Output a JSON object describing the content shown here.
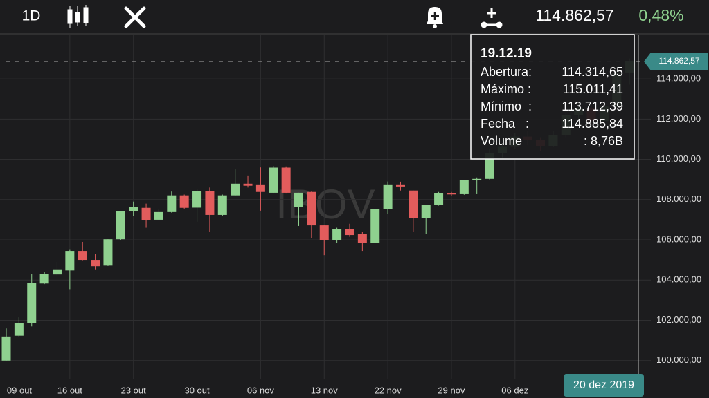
{
  "header": {
    "interval": "1D",
    "price": "114.862,57",
    "change": "0,48%"
  },
  "tooltip": {
    "date": "19.12.19",
    "rows": [
      [
        "Abertura:",
        "114.314,65"
      ],
      [
        "Máximo :",
        "115.011,41"
      ],
      [
        "Mínimo  :",
        "113.712,39"
      ],
      [
        "Fecha   :",
        "114.885,84"
      ],
      [
        "Volume",
        ": 8,76B"
      ]
    ]
  },
  "cursor_date": "20 dez 2019",
  "chart_data": {
    "type": "candlestick",
    "watermark": "IBOV",
    "categories": [
      null,
      null,
      null,
      null,
      null,
      "16 out",
      null,
      null,
      null,
      null,
      "23 out",
      null,
      null,
      null,
      null,
      "30 out",
      null,
      null,
      null,
      null,
      "06 nov",
      null,
      null,
      null,
      null,
      "13 nov",
      null,
      null,
      null,
      null,
      "22 nov",
      null,
      null,
      null,
      null,
      "29 nov",
      null,
      null,
      null,
      null,
      "06 dez",
      null,
      null,
      null,
      null,
      null,
      null,
      null,
      null,
      null
    ],
    "first_label": "09 out",
    "open": [
      100000,
      101240,
      101860,
      103830,
      104280,
      104480,
      105450,
      104970,
      104720,
      106030,
      107410,
      107590,
      107000,
      107380,
      108210,
      107600,
      108410,
      107240,
      108210,
      108790,
      108720,
      108340,
      109590,
      107620,
      108380,
      106720,
      106000,
      106550,
      106310,
      105860,
      107520,
      108720,
      108450,
      107070,
      107720,
      108310,
      108270,
      108960,
      109030,
      110310,
      110620,
      111130,
      110980,
      110670,
      111190,
      112200,
      112560,
      111900,
      112620,
      114314.65
    ],
    "high": [
      101600,
      102150,
      104300,
      104400,
      104900,
      105500,
      105900,
      105300,
      106030,
      107410,
      107900,
      107800,
      107500,
      108400,
      108250,
      108500,
      108600,
      108250,
      109500,
      109200,
      109600,
      109670,
      109650,
      108340,
      108400,
      106720,
      106600,
      106800,
      106380,
      107520,
      108900,
      108890,
      108450,
      107720,
      108380,
      108380,
      108960,
      109100,
      110500,
      110700,
      111300,
      111400,
      111100,
      111400,
      112300,
      112800,
      112700,
      112700,
      114400,
      115011.41
    ],
    "low": [
      100000,
      101200,
      101700,
      103800,
      104200,
      103550,
      104950,
      104500,
      104700,
      106000,
      107200,
      106600,
      106970,
      107350,
      107550,
      106900,
      106380,
      107200,
      108200,
      108600,
      107450,
      108300,
      108300,
      106690,
      106070,
      105240,
      105860,
      106150,
      105450,
      105830,
      107280,
      108450,
      106380,
      106310,
      107700,
      108170,
      108240,
      108270,
      109000,
      110100,
      110500,
      110700,
      110400,
      110600,
      111100,
      111900,
      111700,
      111800,
      112500,
      113712.39
    ],
    "close": [
      101200,
      101860,
      103860,
      104310,
      104500,
      105450,
      104970,
      104690,
      106030,
      107410,
      107620,
      106970,
      107380,
      108210,
      107590,
      108410,
      107240,
      108210,
      108790,
      108690,
      108380,
      109590,
      108340,
      108340,
      106720,
      106000,
      106520,
      106240,
      105860,
      107520,
      108720,
      108650,
      107070,
      107720,
      108310,
      108270,
      108960,
      109030,
      110310,
      110620,
      111130,
      110980,
      110670,
      111190,
      112200,
      112560,
      111900,
      112620,
      114315,
      114885.84
    ],
    "up_color": "#8fd18f",
    "down_color": "#e25c5c",
    "ylim": [
      99100,
      116200
    ],
    "yticks": [
      {
        "value": 100000,
        "label": "100.000,00"
      },
      {
        "value": 102000,
        "label": "102.000,00"
      },
      {
        "value": 104000,
        "label": "104.000,00"
      },
      {
        "value": 106000,
        "label": "106.000,00"
      },
      {
        "value": 108000,
        "label": "108.000,00"
      },
      {
        "value": 110000,
        "label": "110.000,00"
      },
      {
        "value": 112000,
        "label": "112.000,00"
      },
      {
        "value": 114000,
        "label": "114.000,00"
      }
    ],
    "last_price": {
      "value": 114862.57,
      "label": "114.862,57"
    },
    "grid": true
  }
}
